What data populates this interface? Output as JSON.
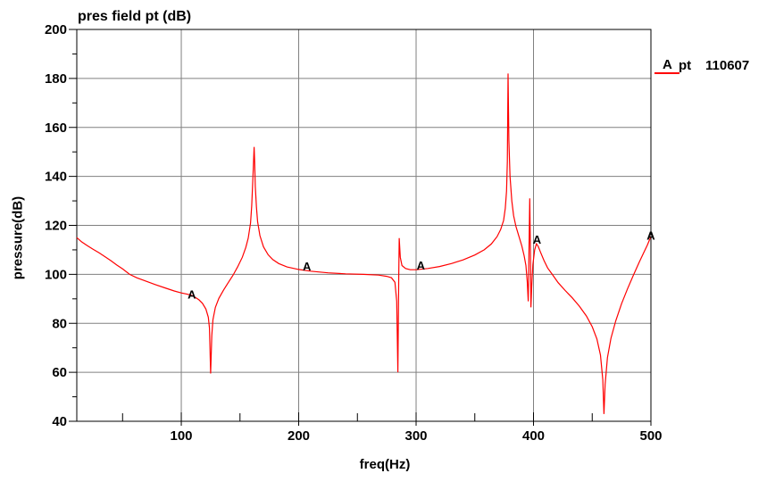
{
  "title": "pres field pt (dB)",
  "legend": {
    "marker": "A",
    "label": "pt",
    "value": "110607"
  },
  "axes": {
    "x": {
      "label": "freq(Hz)",
      "min": 11,
      "max": 500,
      "major_ticks": [
        100,
        200,
        300,
        400,
        500
      ],
      "minor_ticks": [
        50,
        150,
        250,
        350,
        450
      ],
      "gridlines": [
        100,
        200,
        300,
        400
      ]
    },
    "y": {
      "label": "pressure(dB)",
      "min": 40,
      "max": 200,
      "tick_labels": [
        40,
        60,
        80,
        100,
        120,
        140,
        160,
        180,
        200
      ],
      "minor_ticks": [
        50,
        70,
        90,
        110,
        130,
        150,
        170,
        190
      ],
      "gridlines": [
        60,
        80,
        100,
        120,
        140,
        160,
        180
      ]
    }
  },
  "colors": {
    "curve": "#ff0000",
    "grid": "#808080",
    "axis": "#000000",
    "background": "#ffffff",
    "text": "#000000"
  },
  "chart_data": {
    "type": "line",
    "title": "pres field pt (dB)",
    "xlabel": "freq(Hz)",
    "ylabel": "pressure(dB)",
    "xlim": [
      11,
      500
    ],
    "ylim": [
      40,
      200
    ],
    "grid": true,
    "legend_position": "top-right",
    "marker_letter": "A",
    "marker_points": [
      [
        109,
        92
      ],
      [
        207,
        103.4
      ],
      [
        304,
        103.8
      ],
      [
        403,
        114.3
      ],
      [
        500,
        115.9
      ]
    ],
    "series": [
      {
        "name": "pt 110607",
        "color": "#ff0000",
        "points": [
          [
            11,
            115
          ],
          [
            15,
            113.3
          ],
          [
            20,
            111.7
          ],
          [
            25,
            110.2
          ],
          [
            30,
            108.8
          ],
          [
            35,
            107.2
          ],
          [
            40,
            105.6
          ],
          [
            45,
            103.8
          ],
          [
            50,
            102.2
          ],
          [
            56,
            100
          ],
          [
            62,
            98.6
          ],
          [
            70,
            97.2
          ],
          [
            78,
            95.8
          ],
          [
            86,
            94.5
          ],
          [
            94,
            93.2
          ],
          [
            100,
            92.4
          ],
          [
            105,
            91.9
          ],
          [
            109,
            91.4
          ],
          [
            112,
            90.6
          ],
          [
            115,
            89.6
          ],
          [
            118,
            88.2
          ],
          [
            121,
            85.8
          ],
          [
            123,
            82.5
          ],
          [
            124,
            78
          ],
          [
            125,
            59.5
          ],
          [
            126,
            75
          ],
          [
            127,
            81.5
          ],
          [
            129,
            86.5
          ],
          [
            132,
            90.2
          ],
          [
            136,
            93.6
          ],
          [
            140,
            96.6
          ],
          [
            144,
            99.6
          ],
          [
            148,
            103
          ],
          [
            152,
            107
          ],
          [
            155,
            111
          ],
          [
            157,
            114.8
          ],
          [
            159,
            121
          ],
          [
            160,
            128
          ],
          [
            161,
            139
          ],
          [
            162,
            152
          ],
          [
            162.5,
            146
          ],
          [
            163,
            136
          ],
          [
            164,
            127.5
          ],
          [
            165,
            121.5
          ],
          [
            167,
            115.8
          ],
          [
            170,
            111.2
          ],
          [
            174,
            108
          ],
          [
            178,
            106
          ],
          [
            183,
            104.4
          ],
          [
            190,
            103
          ],
          [
            200,
            102
          ],
          [
            210,
            101.3
          ],
          [
            225,
            100.6
          ],
          [
            240,
            100.2
          ],
          [
            255,
            100
          ],
          [
            268,
            99.7
          ],
          [
            275,
            99.2
          ],
          [
            279,
            98.6
          ],
          [
            282,
            96.8
          ],
          [
            283.5,
            89
          ],
          [
            284.5,
            60
          ],
          [
            285.2,
            100
          ],
          [
            285.6,
            114.8
          ],
          [
            286.5,
            107
          ],
          [
            288,
            103.6
          ],
          [
            291,
            102.4
          ],
          [
            295,
            101.9
          ],
          [
            300,
            101.9
          ],
          [
            310,
            102.4
          ],
          [
            320,
            103.2
          ],
          [
            330,
            104.4
          ],
          [
            340,
            105.9
          ],
          [
            350,
            107.9
          ],
          [
            358,
            110
          ],
          [
            364,
            112.4
          ],
          [
            369,
            115.4
          ],
          [
            372,
            118.3
          ],
          [
            374.5,
            122
          ],
          [
            376,
            127
          ],
          [
            377,
            134
          ],
          [
            377.7,
            146
          ],
          [
            378.3,
            182
          ],
          [
            379,
            155
          ],
          [
            380,
            140
          ],
          [
            381.5,
            130
          ],
          [
            383,
            124
          ],
          [
            385,
            119.6
          ],
          [
            387.5,
            115.6
          ],
          [
            390,
            111.6
          ],
          [
            392,
            107.6
          ],
          [
            393.5,
            103.6
          ],
          [
            394.7,
            97
          ],
          [
            395.5,
            89
          ],
          [
            396.3,
            114
          ],
          [
            396.8,
            131
          ],
          [
            397.4,
            108
          ],
          [
            397.8,
            86.5
          ],
          [
            398.5,
            95
          ],
          [
            399.5,
            104
          ],
          [
            401,
            110
          ],
          [
            402.5,
            112.5
          ],
          [
            404,
            111.4
          ],
          [
            406,
            109
          ],
          [
            409,
            105.6
          ],
          [
            412,
            102.6
          ],
          [
            416,
            100
          ],
          [
            421,
            96.6
          ],
          [
            427,
            93.4
          ],
          [
            433,
            90.4
          ],
          [
            439,
            87
          ],
          [
            445,
            83
          ],
          [
            450,
            78.6
          ],
          [
            454,
            73.6
          ],
          [
            457,
            67
          ],
          [
            459,
            57
          ],
          [
            460,
            43
          ],
          [
            461,
            55
          ],
          [
            463,
            66
          ],
          [
            466,
            74
          ],
          [
            470,
            81
          ],
          [
            475,
            88
          ],
          [
            480,
            94
          ],
          [
            485,
            99.6
          ],
          [
            490,
            105
          ],
          [
            494,
            109
          ],
          [
            497,
            112
          ],
          [
            500,
            115.5
          ]
        ]
      }
    ]
  }
}
